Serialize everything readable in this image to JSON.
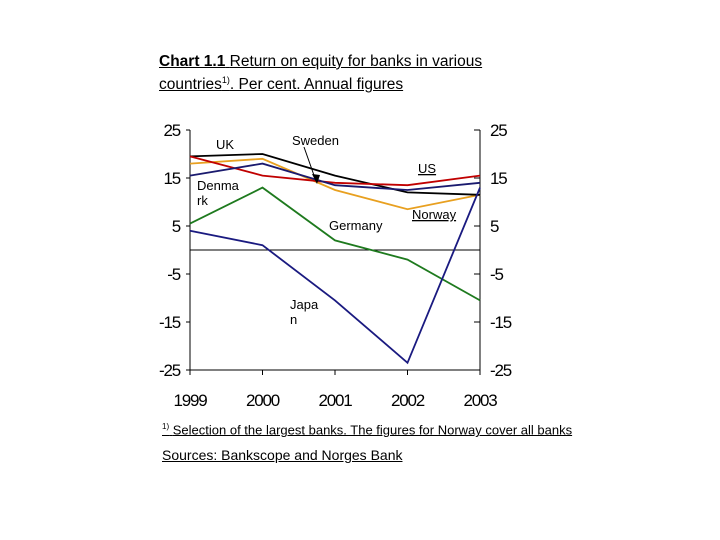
{
  "title": {
    "number": "Chart 1.1",
    "text": "Return on equity for banks in various countries",
    "note_marker": "1)",
    "suffix": ". Per cent. Annual figures"
  },
  "footnote": {
    "marker": "1)",
    "text": "Selection of the largest banks. The figures for Norway cover all banks"
  },
  "sources": "Sources: Bankscope and Norges Bank",
  "chart_data": {
    "type": "line",
    "x": [
      "1999",
      "2000",
      "2001",
      "2002",
      "2003"
    ],
    "ylim": [
      -25,
      25
    ],
    "yticks_left": [
      "25",
      "15",
      "5",
      "-5",
      "-15",
      "-25"
    ],
    "yticks_right": [
      "25",
      "15",
      "5",
      "-5",
      "-15",
      "-25"
    ],
    "grid": false,
    "series": [
      {
        "name": "UK",
        "color": "#e8a020",
        "values": [
          18,
          19,
          12.5,
          8.5,
          11.5
        ]
      },
      {
        "name": "Sweden",
        "color": "#000000",
        "values": [
          19.5,
          20,
          15.5,
          12,
          11.5
        ]
      },
      {
        "name": "US",
        "color": "#c00000",
        "values": [
          19.5,
          15.5,
          14,
          13.5,
          15.5
        ]
      },
      {
        "name": "Denma rk",
        "color": "#1a1a6e",
        "values": [
          15.5,
          18,
          13.5,
          12.5,
          14
        ]
      },
      {
        "name": "Germany",
        "color": "#1e7a1e",
        "values": [
          5.5,
          13,
          2,
          -2,
          -10.5
        ]
      },
      {
        "name": "Norway",
        "color": "#2e9e9e",
        "values": [
          null,
          null,
          null,
          null,
          null
        ]
      },
      {
        "name": "Japa n",
        "color": "#1a1a80",
        "values": [
          4,
          1,
          -10.5,
          -23.5,
          13
        ]
      }
    ],
    "labels": {
      "UK": "UK",
      "Sweden": "Sweden",
      "US": "US",
      "Denmark": "Denma rk",
      "Germany": "Germany",
      "Norway": "Norway",
      "Japan": "Japa n"
    }
  }
}
